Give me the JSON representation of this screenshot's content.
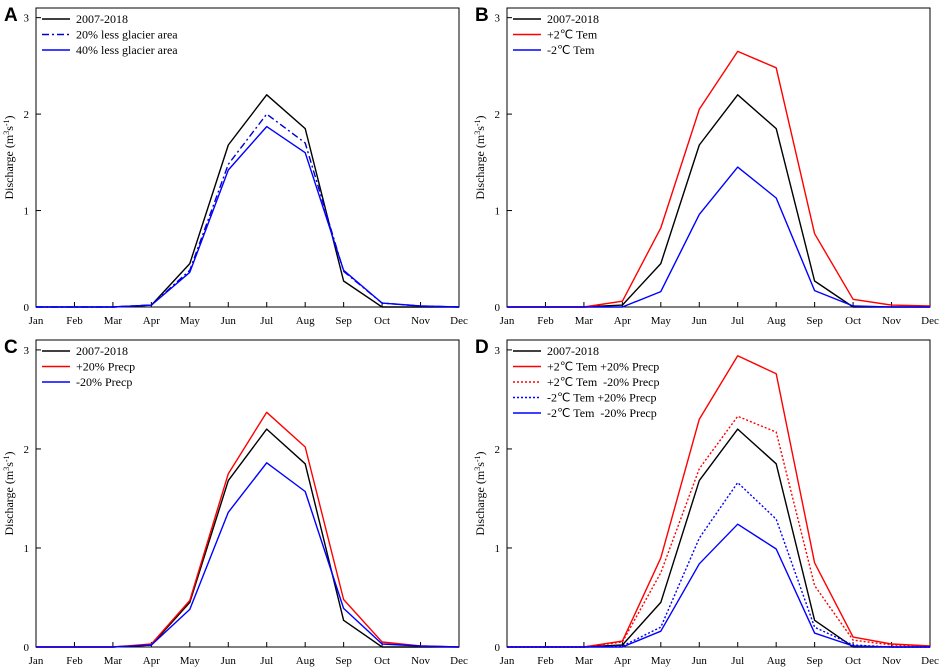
{
  "chart_data": [
    {
      "panel": "A",
      "type": "line",
      "categories": [
        "Jan",
        "Feb",
        "Mar",
        "Apr",
        "May",
        "Jun",
        "Jul",
        "Aug",
        "Sep",
        "Oct",
        "Nov",
        "Dec"
      ],
      "ylabel_main": "Discharge (m",
      "ylabel_sup1": "3",
      "ylabel_mid": "s",
      "ylabel_sup2": "-1",
      "ylabel_end": ")",
      "ylim": [
        0,
        3.1
      ],
      "yticks": [
        0,
        1,
        2,
        3
      ],
      "legend_position": "top-left",
      "series": [
        {
          "name": "2007-2018",
          "color": "#000000",
          "dash": "solid",
          "values": [
            0,
            0,
            0,
            0.02,
            0.45,
            1.68,
            2.2,
            1.85,
            0.27,
            0,
            0,
            0
          ]
        },
        {
          "name": "20% less glacier area",
          "color": "#0000cc",
          "dash": "dashdot",
          "values": [
            0,
            0,
            0,
            0.02,
            0.38,
            1.48,
            2.0,
            1.7,
            0.37,
            0.04,
            0.01,
            0
          ]
        },
        {
          "name": "40% less glacier area",
          "color": "#0000ff",
          "dash": "solid",
          "values": [
            0,
            0,
            0,
            0.02,
            0.36,
            1.42,
            1.87,
            1.6,
            0.38,
            0.04,
            0.01,
            0
          ]
        }
      ]
    },
    {
      "panel": "B",
      "type": "line",
      "categories": [
        "Jan",
        "Feb",
        "Mar",
        "Apr",
        "May",
        "Jun",
        "Jul",
        "Aug",
        "Sep",
        "Oct",
        "Nov",
        "Dec"
      ],
      "ylabel_main": "Discharge (m",
      "ylabel_sup1": "3",
      "ylabel_mid": "s",
      "ylabel_sup2": "-1",
      "ylabel_end": ")",
      "ylim": [
        0,
        3.1
      ],
      "yticks": [
        0,
        1,
        2,
        3
      ],
      "legend_position": "top-left",
      "series": [
        {
          "name": "2007-2018",
          "color": "#000000",
          "dash": "solid",
          "values": [
            0,
            0,
            0,
            0.02,
            0.45,
            1.68,
            2.2,
            1.85,
            0.27,
            0,
            0,
            0
          ]
        },
        {
          "name": "+2℃ Tem",
          "color": "#ff0000",
          "dash": "solid",
          "values": [
            0,
            0,
            0,
            0.06,
            0.82,
            2.05,
            2.65,
            2.48,
            0.76,
            0.08,
            0.02,
            0.01
          ]
        },
        {
          "name": "-2℃ Tem",
          "color": "#0000ff",
          "dash": "solid",
          "values": [
            0,
            0,
            0,
            0,
            0.16,
            0.96,
            1.45,
            1.13,
            0.17,
            0.01,
            0,
            0
          ]
        }
      ]
    },
    {
      "panel": "C",
      "type": "line",
      "categories": [
        "Jan",
        "Feb",
        "Mar",
        "Apr",
        "May",
        "Jun",
        "Jul",
        "Aug",
        "Sep",
        "Oct",
        "Nov",
        "Dec"
      ],
      "ylabel_main": "Discharge (m",
      "ylabel_sup1": "3",
      "ylabel_mid": "s",
      "ylabel_sup2": "-1",
      "ylabel_end": ")",
      "ylim": [
        0,
        3.1
      ],
      "yticks": [
        0,
        1,
        2,
        3
      ],
      "legend_position": "top-left",
      "series": [
        {
          "name": "2007-2018",
          "color": "#000000",
          "dash": "solid",
          "values": [
            0,
            0,
            0,
            0.02,
            0.45,
            1.68,
            2.2,
            1.85,
            0.27,
            0,
            0,
            0
          ]
        },
        {
          "name": "+20% Precp",
          "color": "#ff0000",
          "dash": "solid",
          "values": [
            0,
            0,
            0,
            0.03,
            0.47,
            1.75,
            2.37,
            2.02,
            0.48,
            0.05,
            0.01,
            0
          ]
        },
        {
          "name": "-20% Precp",
          "color": "#0000ff",
          "dash": "solid",
          "values": [
            0,
            0,
            0,
            0.02,
            0.38,
            1.36,
            1.86,
            1.57,
            0.39,
            0.03,
            0.01,
            0
          ]
        }
      ]
    },
    {
      "panel": "D",
      "type": "line",
      "categories": [
        "Jan",
        "Feb",
        "Mar",
        "Apr",
        "May",
        "Jun",
        "Jul",
        "Aug",
        "Sep",
        "Oct",
        "Nov",
        "Dec"
      ],
      "ylabel_main": "Discharge (m",
      "ylabel_sup1": "3",
      "ylabel_mid": "s",
      "ylabel_sup2": "-1",
      "ylabel_end": ")",
      "ylim": [
        0,
        3.1
      ],
      "yticks": [
        0,
        1,
        2,
        3
      ],
      "legend_position": "top-left",
      "series": [
        {
          "name": "2007-2018",
          "color": "#000000",
          "dash": "solid",
          "values": [
            0,
            0,
            0,
            0.02,
            0.45,
            1.68,
            2.2,
            1.85,
            0.27,
            0,
            0,
            0
          ]
        },
        {
          "name": "+2℃ Tem +20% Precp",
          "color": "#ff0000",
          "dash": "solid",
          "values": [
            0,
            0,
            0,
            0.06,
            0.9,
            2.3,
            2.94,
            2.76,
            0.85,
            0.1,
            0.03,
            0.01
          ]
        },
        {
          "name": "+2℃ Tem  -20% Precp",
          "color": "#ff0000",
          "dash": "dotted",
          "values": [
            0,
            0,
            0,
            0.05,
            0.75,
            1.8,
            2.33,
            2.17,
            0.62,
            0.07,
            0.02,
            0.01
          ]
        },
        {
          "name": "-2℃ Tem +20% Precp",
          "color": "#0000ff",
          "dash": "dotted",
          "values": [
            0,
            0,
            0,
            0.01,
            0.2,
            1.1,
            1.66,
            1.29,
            0.2,
            0.02,
            0,
            0
          ]
        },
        {
          "name": "-2℃ Tem  -20% Precp",
          "color": "#0000ff",
          "dash": "solid",
          "values": [
            0,
            0,
            0,
            0,
            0.16,
            0.84,
            1.24,
            0.99,
            0.14,
            0.01,
            0,
            0
          ]
        }
      ]
    }
  ]
}
